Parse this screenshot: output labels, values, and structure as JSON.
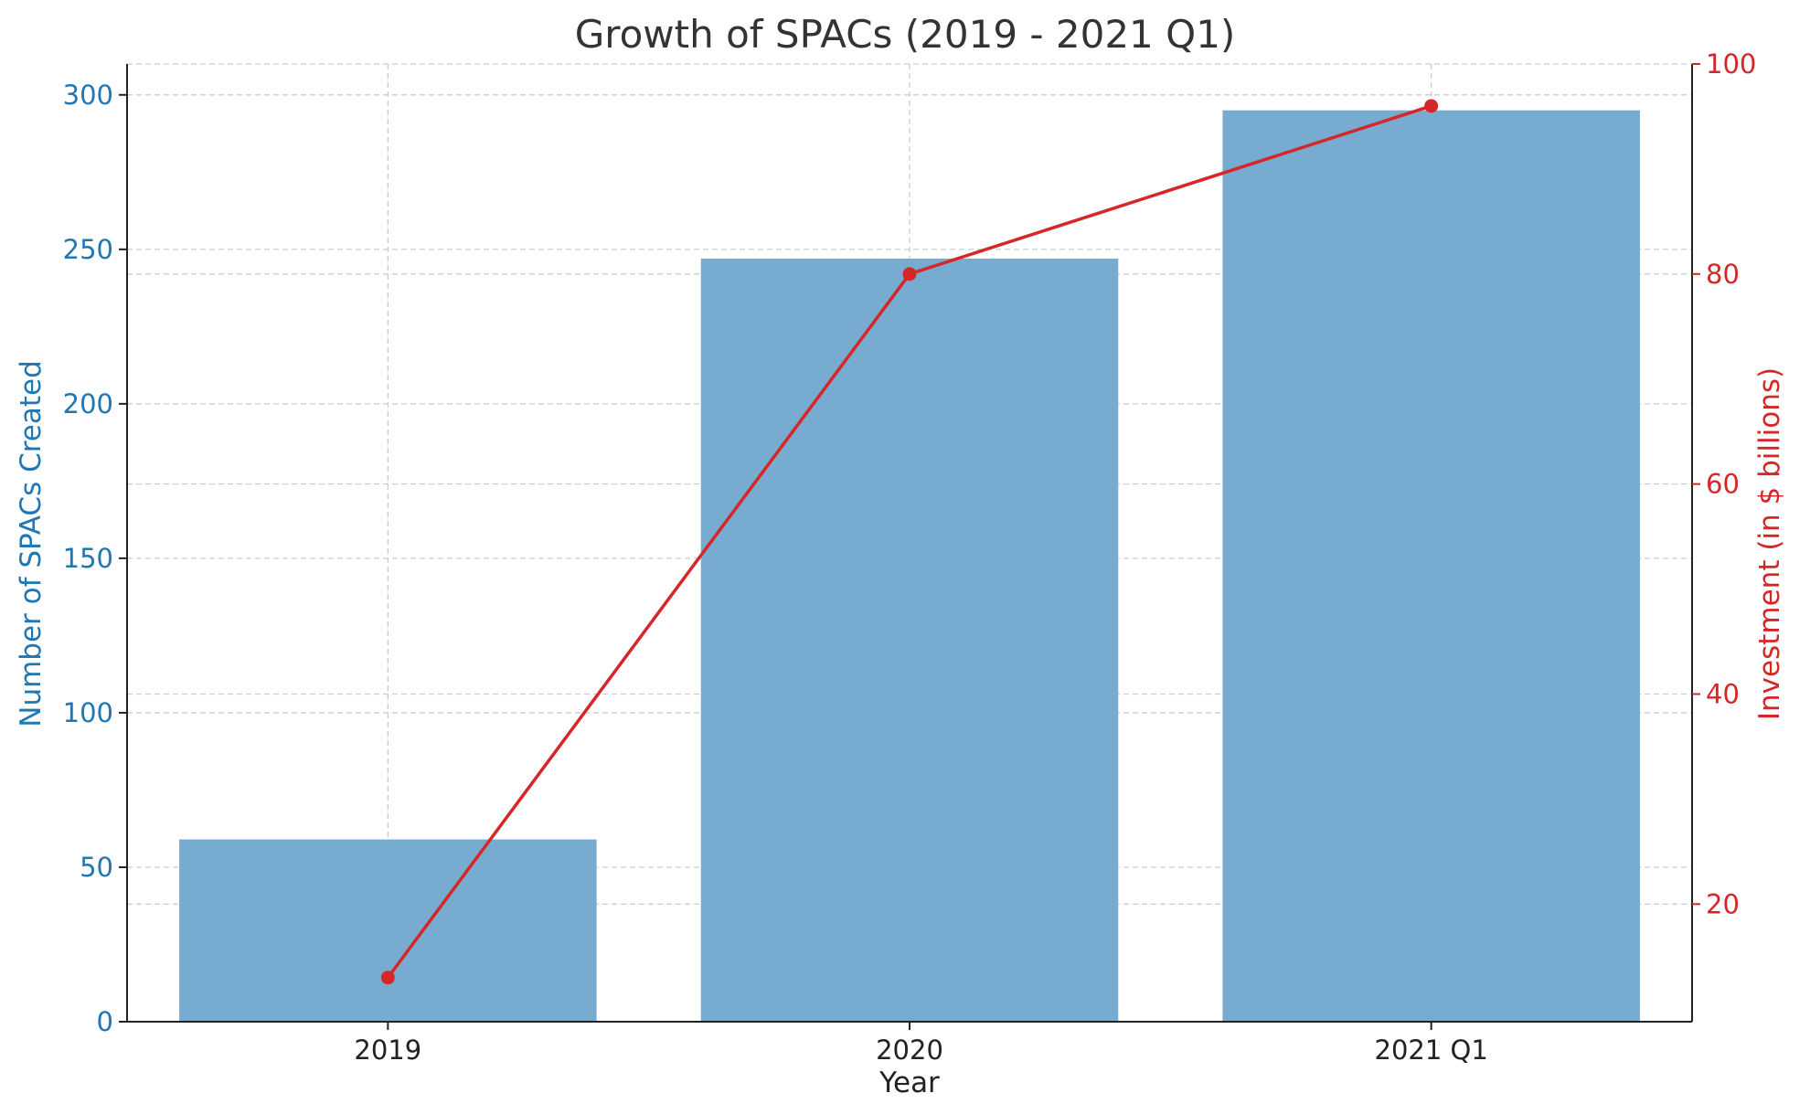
{
  "chart_data": {
    "type": "bar",
    "title": "Growth of SPACs (2019 - 2021 Q1)",
    "xlabel": "Year",
    "categories": [
      "2019",
      "2020",
      "2021 Q1"
    ],
    "grid": true,
    "series": [
      {
        "name": "Number of SPACs Created",
        "type": "bar",
        "axis": "left",
        "values": [
          59,
          247,
          295
        ],
        "color": "#77abd0"
      },
      {
        "name": "Investment (in $ billions)",
        "type": "line",
        "axis": "right",
        "values": [
          13,
          80,
          96
        ],
        "color": "#d62728"
      }
    ],
    "y_left": {
      "label": "Number of SPACs Created",
      "range": [
        0,
        310
      ],
      "ticks": [
        0,
        50,
        100,
        150,
        200,
        250,
        300
      ],
      "color": "#1f77b4"
    },
    "y_right": {
      "label": "Investment (in $ billions)",
      "range": [
        8.8,
        100
      ],
      "ticks": [
        20,
        40,
        60,
        80,
        100
      ],
      "color": "#d62728"
    },
    "axis_color": "#222222",
    "grid_color": "#cccccc"
  }
}
